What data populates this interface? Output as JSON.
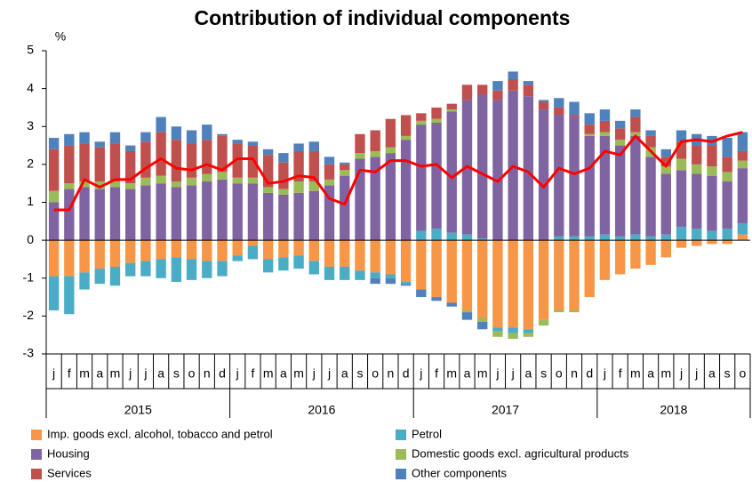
{
  "chart_data": {
    "type": "bar",
    "stacked": true,
    "title": "Contribution of individual components",
    "y_label": "%",
    "categories": [
      "j",
      "f",
      "m",
      "a",
      "m",
      "j",
      "j",
      "a",
      "s",
      "o",
      "n",
      "d",
      "j",
      "f",
      "m",
      "a",
      "m",
      "j",
      "j",
      "a",
      "s",
      "o",
      "n",
      "d",
      "j",
      "f",
      "m",
      "a",
      "m",
      "j",
      "j",
      "a",
      "s",
      "o",
      "n",
      "d",
      "j",
      "f",
      "m",
      "a",
      "m",
      "j",
      "j",
      "a",
      "s",
      "o"
    ],
    "category_groups": [
      {
        "label": "2015",
        "count": 12
      },
      {
        "label": "2016",
        "count": 12
      },
      {
        "label": "2017",
        "count": 12
      },
      {
        "label": "2018",
        "count": 10
      }
    ],
    "ylim": [
      -3,
      5
    ],
    "yticks": [
      -3,
      -2,
      -1,
      0,
      1,
      2,
      3,
      4,
      5
    ],
    "series": [
      {
        "name": "Imp. goods excl. alcohol, tobacco and petrol",
        "color": "#f79646",
        "values": [
          -0.95,
          -0.95,
          -0.85,
          -0.75,
          -0.7,
          -0.6,
          -0.55,
          -0.5,
          -0.45,
          -0.5,
          -0.55,
          -0.55,
          -0.4,
          -0.15,
          -0.5,
          -0.45,
          -0.4,
          -0.55,
          -0.7,
          -0.7,
          -0.8,
          -0.85,
          -0.9,
          -1.1,
          -1.3,
          -1.5,
          -1.65,
          -1.85,
          -2.05,
          -2.3,
          -2.3,
          -2.35,
          -2.1,
          -1.85,
          -1.85,
          -1.5,
          -1.05,
          -0.9,
          -0.75,
          -0.65,
          -0.45,
          -0.2,
          -0.15,
          -0.1,
          -0.1,
          0.15
        ]
      },
      {
        "name": "Petrol",
        "color": "#4bacc6",
        "values": [
          -0.9,
          -1.0,
          -0.45,
          -0.4,
          -0.5,
          -0.35,
          -0.4,
          -0.5,
          -0.65,
          -0.55,
          -0.45,
          -0.4,
          -0.15,
          -0.35,
          -0.35,
          -0.35,
          -0.35,
          -0.35,
          -0.35,
          -0.35,
          -0.25,
          -0.15,
          -0.1,
          -0.05,
          0.25,
          0.3,
          0.2,
          0.15,
          0.05,
          -0.1,
          -0.15,
          -0.1,
          0,
          0.1,
          0.1,
          0.1,
          0.15,
          0.1,
          0.15,
          0.1,
          0.15,
          0.35,
          0.3,
          0.25,
          0.3,
          0.3
        ]
      },
      {
        "name": "Housing",
        "color": "#8064a2",
        "values": [
          1.0,
          1.35,
          1.4,
          1.35,
          1.4,
          1.35,
          1.45,
          1.5,
          1.4,
          1.45,
          1.55,
          1.6,
          1.5,
          1.5,
          1.25,
          1.2,
          1.25,
          1.3,
          1.45,
          1.7,
          2.15,
          2.2,
          2.3,
          2.65,
          2.8,
          2.8,
          3.2,
          3.55,
          3.8,
          3.7,
          3.95,
          3.8,
          3.45,
          3.2,
          3.15,
          2.65,
          2.6,
          2.4,
          2.6,
          2.1,
          1.6,
          1.5,
          1.45,
          1.45,
          1.25,
          1.45
        ]
      },
      {
        "name": "Domestic goods excl. agricultural products",
        "color": "#9bbb59",
        "values": [
          0.3,
          0.15,
          0.15,
          0.2,
          0.15,
          0.15,
          0.2,
          0.2,
          0.15,
          0.2,
          0.2,
          0.2,
          0.15,
          0.15,
          0.15,
          0.15,
          0.3,
          0.25,
          0.15,
          0.15,
          0.15,
          0.15,
          0.15,
          0.1,
          0.1,
          0.1,
          0.05,
          -0.05,
          -0.1,
          -0.15,
          -0.15,
          -0.1,
          -0.15,
          -0.05,
          -0.05,
          0.05,
          0.1,
          0.15,
          0.1,
          0.25,
          0.2,
          0.3,
          0.25,
          0.25,
          0.25,
          0.2
        ]
      },
      {
        "name": "Services",
        "color": "#c0504d",
        "values": [
          1.1,
          1.0,
          1.0,
          0.9,
          1.0,
          0.85,
          0.95,
          1.15,
          1.1,
          0.9,
          0.9,
          0.95,
          0.9,
          0.85,
          0.85,
          0.7,
          0.8,
          0.8,
          0.4,
          0.15,
          0.5,
          0.55,
          0.75,
          0.55,
          0.2,
          0.3,
          0.15,
          0.4,
          0.25,
          0.25,
          0.3,
          0.3,
          0.2,
          0.2,
          0.05,
          0.25,
          0.3,
          0.3,
          0.4,
          0.3,
          0.25,
          0.45,
          0.5,
          0.55,
          0.4,
          0.25
        ]
      },
      {
        "name": "Other components",
        "color": "#4f81bd",
        "values": [
          0.3,
          0.3,
          0.3,
          0.15,
          0.3,
          0.15,
          0.25,
          0.4,
          0.35,
          0.35,
          0.4,
          0.05,
          0.1,
          0.1,
          0.15,
          0.25,
          0.2,
          0.25,
          0.2,
          0.05,
          0,
          -0.15,
          -0.15,
          -0.05,
          -0.2,
          -0.1,
          -0.1,
          -0.2,
          -0.2,
          0.25,
          0.2,
          0.1,
          0.05,
          0.25,
          0.35,
          0.3,
          0.3,
          0.2,
          0.2,
          0.15,
          0.2,
          0.3,
          0.3,
          0.25,
          0.5,
          0.5
        ]
      }
    ],
    "line": {
      "color": "#ff0000",
      "values": [
        0.8,
        0.8,
        1.6,
        1.4,
        1.6,
        1.6,
        1.9,
        2.15,
        1.9,
        1.85,
        2.0,
        1.85,
        2.15,
        2.15,
        1.5,
        1.55,
        1.7,
        1.65,
        1.1,
        0.95,
        1.85,
        1.8,
        2.1,
        2.1,
        1.95,
        2.0,
        1.65,
        1.95,
        1.75,
        1.55,
        1.95,
        1.8,
        1.4,
        1.9,
        1.75,
        1.9,
        2.35,
        2.25,
        2.75,
        2.35,
        1.95,
        2.6,
        2.65,
        2.6,
        2.75,
        2.85
      ]
    }
  }
}
